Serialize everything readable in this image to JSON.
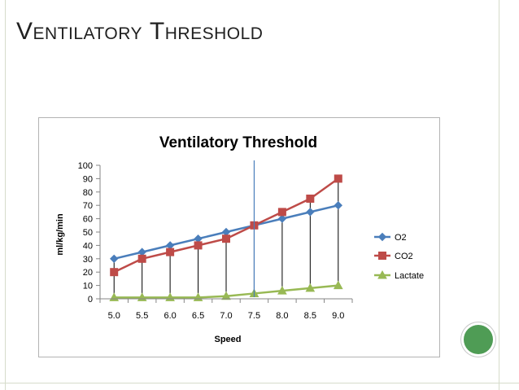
{
  "slide": {
    "title_first": "Ventilatory",
    "title_second": "Threshold"
  },
  "colors": {
    "o2": "#4a7ebb",
    "co2": "#be4b48",
    "lactate": "#98b954",
    "threshold_line": "#4a7ebb",
    "drop_lines": "#000000",
    "accent_circle": "#4f9c55"
  },
  "chart_data": {
    "type": "line",
    "title": "Ventilatory Threshold",
    "xlabel": "Speed",
    "ylabel": "ml/kg/min",
    "categories": [
      "5.0",
      "5.5",
      "6.0",
      "6.5",
      "7.0",
      "7.5",
      "8.0",
      "8.5",
      "9.0"
    ],
    "ylim": [
      0,
      100
    ],
    "yticks": [
      0,
      10,
      20,
      30,
      40,
      50,
      60,
      70,
      80,
      90,
      100
    ],
    "grid": false,
    "legend_position": "right",
    "series": [
      {
        "name": "O2",
        "marker": "diamond",
        "values": [
          30,
          35,
          40,
          45,
          50,
          55,
          60,
          65,
          70
        ]
      },
      {
        "name": "CO2",
        "marker": "square",
        "values": [
          20,
          30,
          35,
          40,
          45,
          55,
          65,
          75,
          90
        ]
      },
      {
        "name": "Lactate",
        "marker": "triangle",
        "values": [
          1,
          1,
          1,
          1,
          2,
          4,
          6,
          8,
          10
        ]
      }
    ],
    "threshold_category": "7.5"
  }
}
